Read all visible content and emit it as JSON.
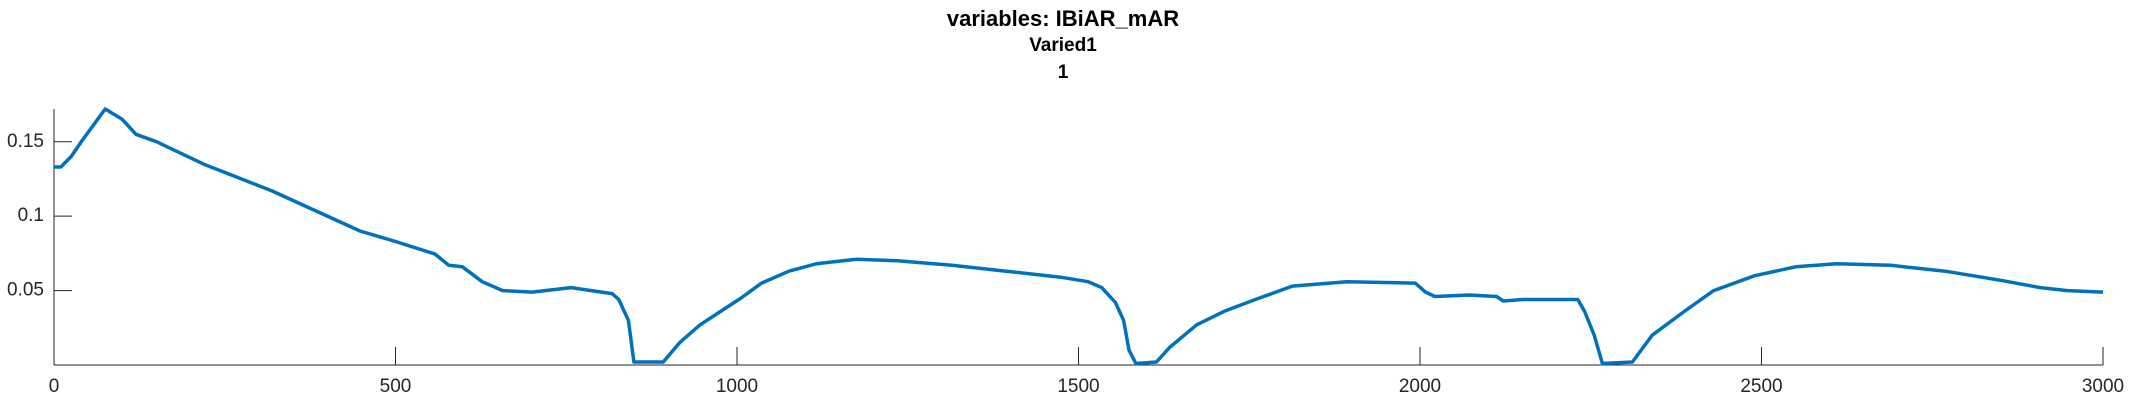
{
  "chart_data": {
    "type": "line",
    "title": "variables: IBiAR_mAR",
    "subtitle": "Varied1",
    "subtitle2": "1",
    "xlim": [
      0,
      3000
    ],
    "xticks": [
      0,
      500,
      1000,
      1500,
      2000,
      2500,
      3000
    ],
    "ylim": [
      0,
      0.172
    ],
    "yticks": [
      0.05,
      0.1,
      0.15
    ],
    "series": [
      {
        "color": "#0072bd",
        "x": [
          0,
          10,
          25,
          40,
          75,
          100,
          120,
          150,
          219,
          319,
          448,
          500,
          558,
          578,
          598,
          627,
          657,
          700,
          757,
          817,
          827,
          841,
          849,
          892,
          916,
          946,
          976,
          1006,
          1036,
          1076,
          1116,
          1175,
          1235,
          1315,
          1394,
          1474,
          1514,
          1534,
          1554,
          1566,
          1574,
          1584,
          1614,
          1634,
          1673,
          1713,
          1753,
          1813,
          1893,
          1993,
          2008,
          2022,
          2072,
          2112,
          2122,
          2151,
          2231,
          2241,
          2255,
          2267,
          2311,
          2340,
          2390,
          2430,
          2490,
          2550,
          2610,
          2689,
          2769,
          2849,
          2908,
          2948,
          3000
        ],
        "values": [
          0.133,
          0.133,
          0.14,
          0.15,
          0.172,
          0.165,
          0.155,
          0.15,
          0.135,
          0.117,
          0.09,
          0.083,
          0.0745,
          0.067,
          0.066,
          0.056,
          0.05,
          0.049,
          0.052,
          0.048,
          0.044,
          0.03,
          0.002,
          0.002,
          0.015,
          0.027,
          0.036,
          0.045,
          0.055,
          0.063,
          0.068,
          0.071,
          0.07,
          0.067,
          0.063,
          0.059,
          0.056,
          0.052,
          0.042,
          0.03,
          0.01,
          0.001,
          0.002,
          0.012,
          0.027,
          0.036,
          0.043,
          0.053,
          0.056,
          0.055,
          0.049,
          0.046,
          0.047,
          0.046,
          0.043,
          0.044,
          0.044,
          0.036,
          0.02,
          0.001,
          0.002,
          0.02,
          0.037,
          0.05,
          0.06,
          0.066,
          0.068,
          0.067,
          0.063,
          0.057,
          0.052,
          0.05,
          0.049
        ]
      }
    ]
  }
}
